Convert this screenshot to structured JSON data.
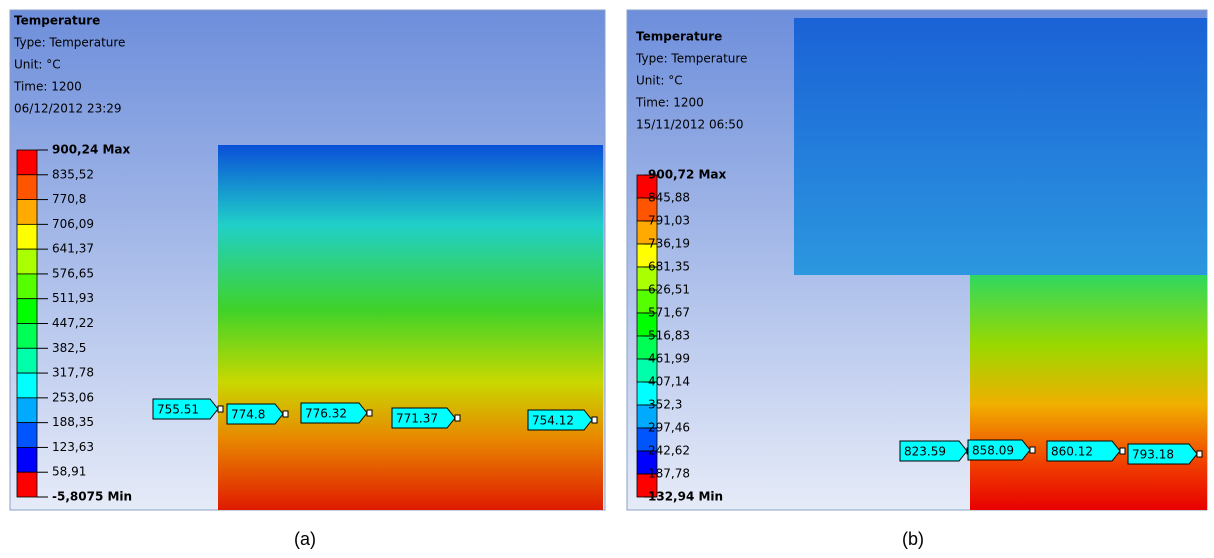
{
  "panels": [
    {
      "header": [
        "Temperature",
        "Type: Temperature",
        "Unit: °C",
        "Time: 1200",
        "06/12/2012 23:29"
      ],
      "legend": [
        "900,24 Max",
        "835,52",
        "770,8",
        "706,09",
        "641,37",
        "576,65",
        "511,93",
        "447,22",
        "382,5",
        "317,78",
        "253,06",
        "188,35",
        "123,63",
        "58,91",
        "-5,8075 Min"
      ],
      "probes": [
        "755.51",
        "774.8",
        "776.32",
        "771.37",
        "754.12"
      ],
      "caption": "(a)"
    },
    {
      "header": [
        "Temperature",
        "Type: Temperature",
        "Unit: °C",
        "Time: 1200",
        "15/11/2012 06:50"
      ],
      "legend": [
        "900,72 Max",
        "845,88",
        "791,03",
        "736,19",
        "681,35",
        "626,51",
        "571,67",
        "516,83",
        "461,99",
        "407,14",
        "352,3",
        "297,46",
        "242,62",
        "187,78",
        "132,94 Min"
      ],
      "probes": [
        "823.59",
        "858.09",
        "860.12",
        "793.18"
      ],
      "caption": "(b)"
    }
  ]
}
